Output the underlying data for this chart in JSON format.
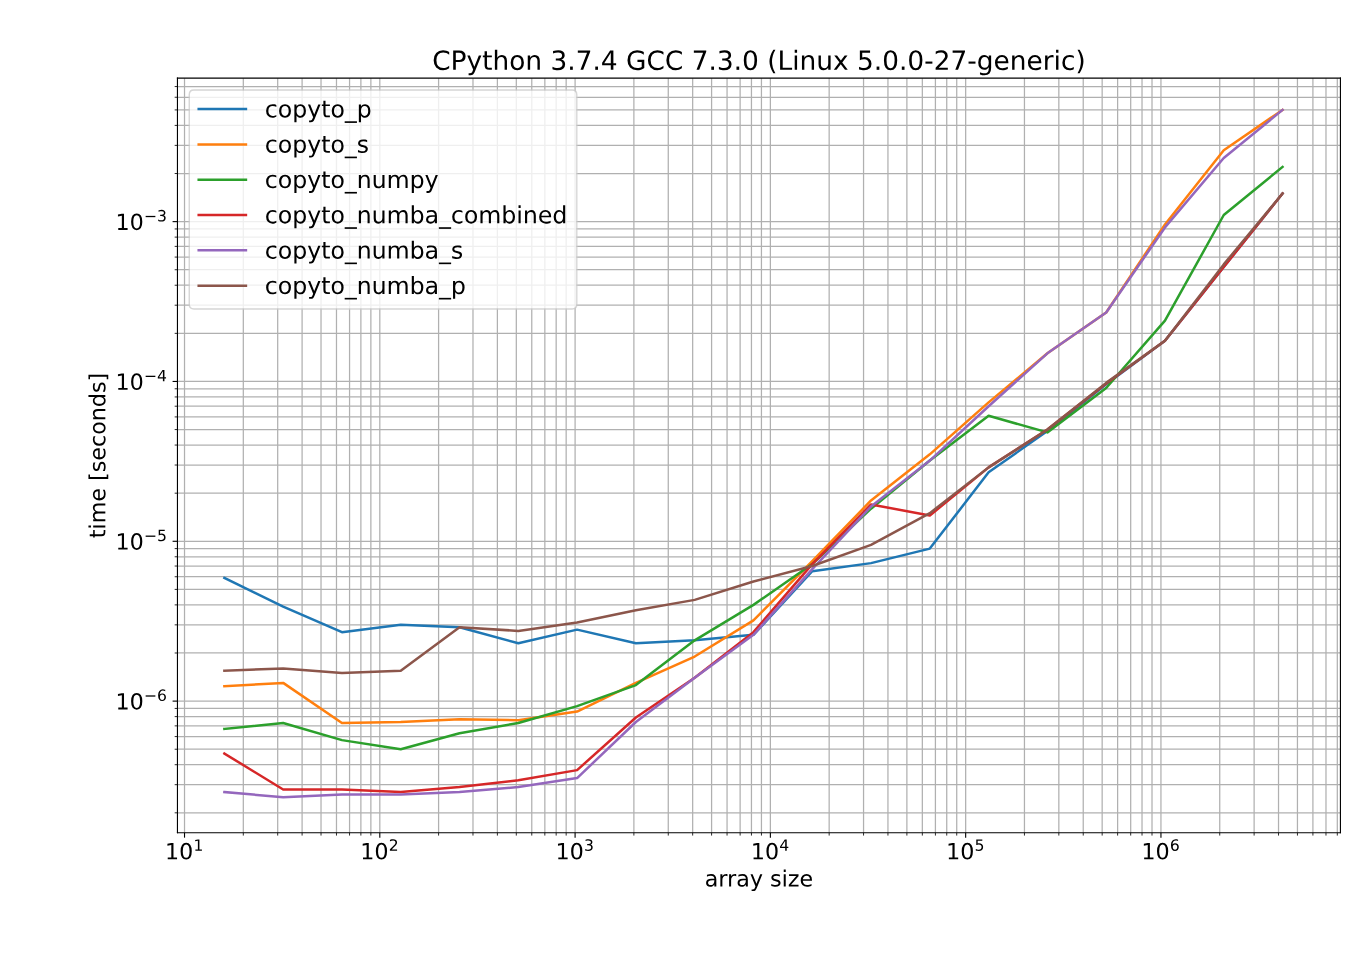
{
  "chart_data": {
    "type": "line",
    "title": "CPython 3.7.4 GCC 7.3.0 (Linux 5.0.0-27-generic)",
    "xlabel": "array size",
    "ylabel": "time [seconds]",
    "x": [
      16,
      32,
      64,
      128,
      256,
      512,
      1024,
      2048,
      4096,
      8192,
      16384,
      32768,
      65536,
      131072,
      262144,
      524288,
      1048576,
      2097152,
      4194304
    ],
    "series": [
      {
        "name": "copyto_p",
        "color": "#1f77b4",
        "values": [
          5.9e-06,
          3.9e-06,
          2.7e-06,
          3e-06,
          2.9e-06,
          2.3e-06,
          2.8e-06,
          2.3e-06,
          2.4e-06,
          2.6e-06,
          6.5e-06,
          7.3e-06,
          9e-06,
          2.7e-05,
          4.9e-05,
          9.6e-05,
          0.00018,
          0.00052,
          0.0015
        ]
      },
      {
        "name": "copyto_s",
        "color": "#ff7f0e",
        "values": [
          1.24e-06,
          1.3e-06,
          7.3e-07,
          7.4e-07,
          7.7e-07,
          7.6e-07,
          8.6e-07,
          1.3e-06,
          1.9e-06,
          3.2e-06,
          7.5e-06,
          1.8e-05,
          3.5e-05,
          7.4e-05,
          0.00015,
          0.00027,
          0.00096,
          0.0028,
          0.005
        ]
      },
      {
        "name": "copyto_numpy",
        "color": "#2ca02c",
        "values": [
          6.7e-07,
          7.3e-07,
          5.7e-07,
          5e-07,
          6.3e-07,
          7.3e-07,
          9.3e-07,
          1.26e-06,
          2.4e-06,
          4e-06,
          7.2e-06,
          1.6e-05,
          3.2e-05,
          6.1e-05,
          4.8e-05,
          9.1e-05,
          0.00024,
          0.0011,
          0.0022
        ]
      },
      {
        "name": "copyto_numba_combined",
        "color": "#d62728",
        "values": [
          4.7e-07,
          2.8e-07,
          2.8e-07,
          2.7e-07,
          2.9e-07,
          3.2e-07,
          3.7e-07,
          7.9e-07,
          1.4e-06,
          2.7e-06,
          7.2e-06,
          1.7e-05,
          1.45e-05,
          2.9e-05,
          5e-05,
          9.7e-05,
          0.00018,
          0.00052,
          0.0015
        ]
      },
      {
        "name": "copyto_numba_s",
        "color": "#9467bd",
        "values": [
          2.7e-07,
          2.5e-07,
          2.6e-07,
          2.6e-07,
          2.7e-07,
          2.9e-07,
          3.3e-07,
          7.4e-07,
          1.4e-06,
          2.6e-06,
          6.7e-06,
          1.65e-05,
          3.2e-05,
          7e-05,
          0.00015,
          0.00027,
          0.00092,
          0.0025,
          0.005
        ]
      },
      {
        "name": "copyto_numba_p",
        "color": "#8c564b",
        "values": [
          1.55e-06,
          1.6e-06,
          1.5e-06,
          1.55e-06,
          2.9e-06,
          2.75e-06,
          3.1e-06,
          3.7e-06,
          4.3e-06,
          5.6e-06,
          7e-06,
          9.5e-06,
          1.5e-05,
          2.9e-05,
          5e-05,
          9.8e-05,
          0.00018,
          0.00054,
          0.0015
        ]
      }
    ],
    "log": "xy",
    "xlim": [
      9.2,
      8300000.0
    ],
    "ylim": [
      1.5e-07,
      0.0079
    ],
    "xticks": [
      {
        "value": 10,
        "label": "10$^{1}$"
      },
      {
        "value": 100,
        "label": "10$^{2}$"
      },
      {
        "value": 1000,
        "label": "10$^{3}$"
      },
      {
        "value": 10000,
        "label": "10$^{4}$"
      },
      {
        "value": 100000,
        "label": "10$^{5}$"
      },
      {
        "value": 1000000,
        "label": "10$^{6}$"
      }
    ],
    "yticks": [
      {
        "value": 1e-06,
        "label": "10$^{−6}$"
      },
      {
        "value": 1e-05,
        "label": "10$^{−5}$"
      },
      {
        "value": 0.0001,
        "label": "10$^{−4}$"
      },
      {
        "value": 0.001,
        "label": "10$^{−3}$"
      }
    ],
    "grid": true,
    "legend": "top left",
    "marker": "none",
    "line_style": "solid"
  }
}
